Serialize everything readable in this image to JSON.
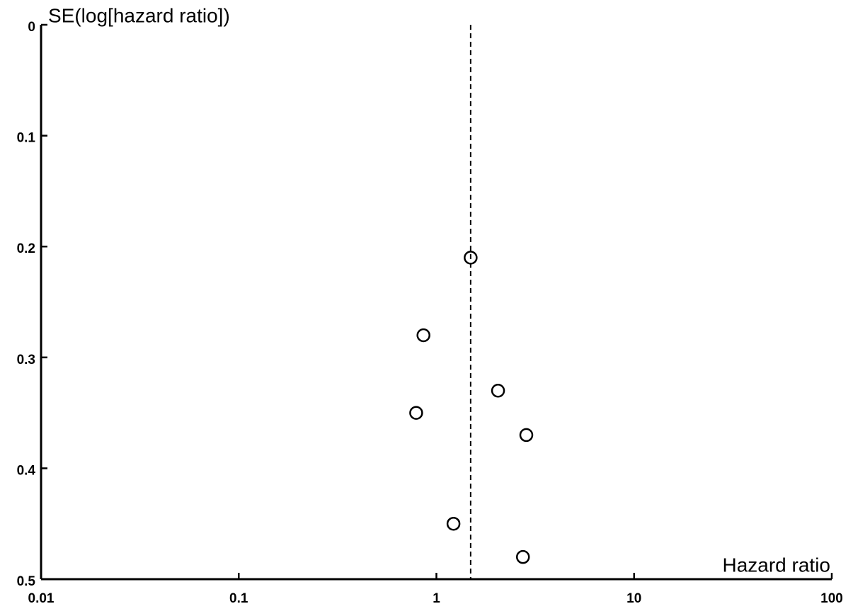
{
  "chart_data": {
    "type": "scatter",
    "x_label": "Hazard ratio",
    "y_label": "SE(log[hazard ratio])",
    "x": [
      1.49,
      0.86,
      2.05,
      0.79,
      2.85,
      1.22,
      2.74
    ],
    "values": [
      0.21,
      0.28,
      0.33,
      0.35,
      0.37,
      0.45,
      0.48
    ],
    "color": "#000000",
    "x_scale": "log",
    "xlim": [
      0.01,
      100
    ],
    "xticks": [
      0.01,
      0.1,
      1,
      10,
      100
    ],
    "ylim": [
      0,
      0.5
    ],
    "yticks": [
      0,
      0.1,
      0.2,
      0.3,
      0.4,
      0.5
    ],
    "y_inverted": true,
    "reference_line": 1.49,
    "grid": false
  }
}
